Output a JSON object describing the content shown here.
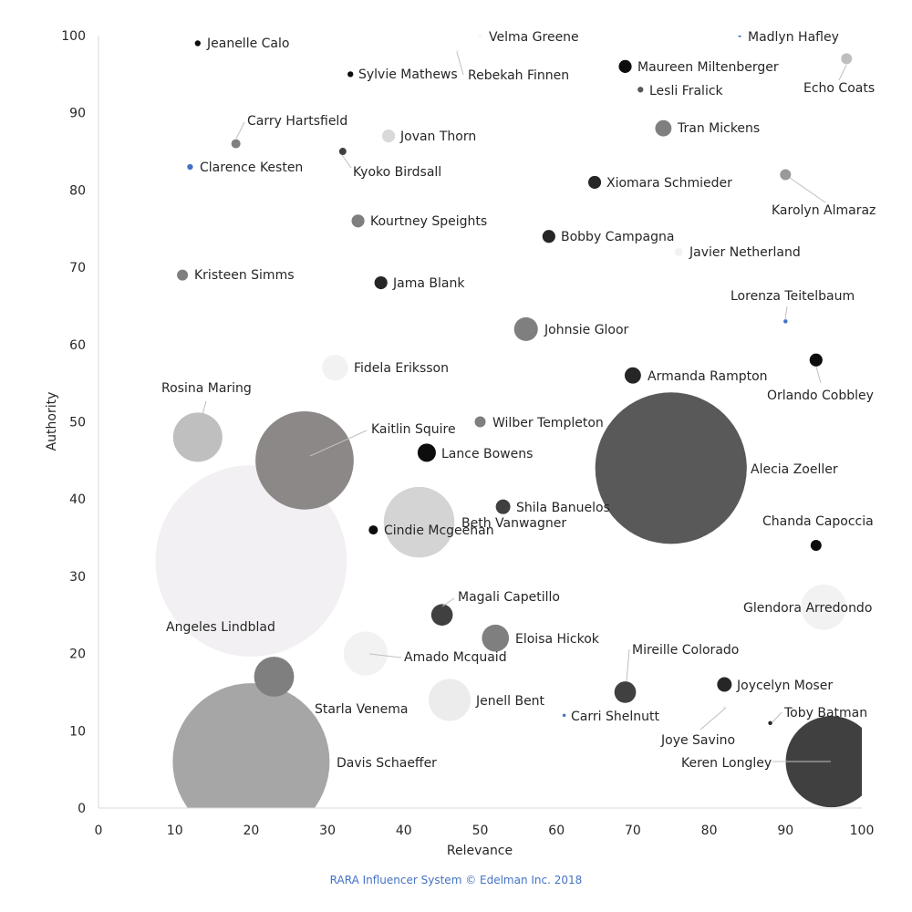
{
  "chart_data": {
    "type": "bubble",
    "xlabel": "Relevance",
    "ylabel": "Authority",
    "xlim": [
      0,
      100
    ],
    "ylim": [
      0,
      100
    ],
    "xticks": [
      0,
      10,
      20,
      30,
      40,
      50,
      60,
      70,
      80,
      90,
      100
    ],
    "yticks": [
      0,
      10,
      20,
      30,
      40,
      50,
      60,
      70,
      80,
      90,
      100
    ],
    "grid": false,
    "points": [
      {
        "name": "Jeanelle Calo",
        "x": 13,
        "y": 99,
        "size": 0.1,
        "color": "#0d0d0d"
      },
      {
        "name": "Velma Greene",
        "x": 50,
        "y": 100,
        "size": 0.05,
        "color": "#f2f2f2"
      },
      {
        "name": "Rebekah Finnen",
        "x": 47,
        "y": 98,
        "size": 0.03,
        "color": "#f2f2f2"
      },
      {
        "name": "Sylvie Mathews",
        "x": 33,
        "y": 95,
        "size": 0.1,
        "color": "#0d0d0d"
      },
      {
        "name": "Madlyn Hafley",
        "x": 84,
        "y": 100,
        "size": 0.03,
        "color": "#4472c4"
      },
      {
        "name": "Maureen Miltenberger",
        "x": 69,
        "y": 96,
        "size": 0.5,
        "color": "#0d0d0d"
      },
      {
        "name": "Lesli Fralick",
        "x": 71,
        "y": 93,
        "size": 0.1,
        "color": "#595959"
      },
      {
        "name": "Echo Coats",
        "x": 98,
        "y": 97,
        "size": 0.36,
        "color": "#bfbfbf"
      },
      {
        "name": "Carry Hartsfield",
        "x": 18,
        "y": 86,
        "size": 0.25,
        "color": "#7f7f7f"
      },
      {
        "name": "Clarence Kesten",
        "x": 12,
        "y": 83,
        "size": 0.1,
        "color": "#4472c4"
      },
      {
        "name": "Kyoko Birdsall",
        "x": 32,
        "y": 85,
        "size": 0.16,
        "color": "#404040"
      },
      {
        "name": "Jovan Thorn",
        "x": 38,
        "y": 87,
        "size": 0.5,
        "color": "#d9d9d9"
      },
      {
        "name": "Tran Mickens",
        "x": 74,
        "y": 88,
        "size": 0.8,
        "color": "#7f7f7f"
      },
      {
        "name": "Xiomara Schmieder",
        "x": 65,
        "y": 81,
        "size": 0.5,
        "color": "#262626"
      },
      {
        "name": "Karolyn Almaraz",
        "x": 90,
        "y": 82,
        "size": 0.36,
        "color": "#9a9a9a"
      },
      {
        "name": "Kourtney Speights",
        "x": 34,
        "y": 76,
        "size": 0.5,
        "color": "#7f7f7f"
      },
      {
        "name": "Bobby Campagna",
        "x": 59,
        "y": 74,
        "size": 0.5,
        "color": "#262626"
      },
      {
        "name": "Javier Netherland",
        "x": 76,
        "y": 72,
        "size": 0.2,
        "color": "#f2f2f2"
      },
      {
        "name": "Kristeen Simms",
        "x": 11,
        "y": 69,
        "size": 0.36,
        "color": "#7f7f7f"
      },
      {
        "name": "Jama Blank",
        "x": 37,
        "y": 68,
        "size": 0.5,
        "color": "#262626"
      },
      {
        "name": "Lorenza Teitelbaum",
        "x": 90,
        "y": 63,
        "size": 0.05,
        "color": "#4472c4"
      },
      {
        "name": "Johnsie Gloor",
        "x": 56,
        "y": 62,
        "size": 1.7,
        "color": "#7f7f7f"
      },
      {
        "name": "Fidela Eriksson",
        "x": 31,
        "y": 57,
        "size": 2,
        "color": "#f2f2f2"
      },
      {
        "name": "Orlando Cobbley",
        "x": 94,
        "y": 58,
        "size": 0.5,
        "color": "#0d0d0d"
      },
      {
        "name": "Armanda Rampton",
        "x": 70,
        "y": 56,
        "size": 0.8,
        "color": "#262626"
      },
      {
        "name": "Rosina Maring",
        "x": 13,
        "y": 48,
        "size": 7.3,
        "color": "#bfbfbf"
      },
      {
        "name": "Kaitlin Squire",
        "x": 27,
        "y": 45,
        "size": 29,
        "color": "#8c8888"
      },
      {
        "name": "Wilber Templeton",
        "x": 50,
        "y": 50,
        "size": 0.36,
        "color": "#7f7f7f"
      },
      {
        "name": "Lance Bowens",
        "x": 43,
        "y": 46,
        "size": 1,
        "color": "#0d0d0d"
      },
      {
        "name": "Alecia Zoeller",
        "x": 75,
        "y": 44,
        "size": 69,
        "color": "#595959"
      },
      {
        "name": "Angeles Lindblad",
        "x": 20,
        "y": 32,
        "size": 110,
        "color": "#f2f0f2"
      },
      {
        "name": "Beth Vanwagner",
        "x": 42,
        "y": 37,
        "size": 15,
        "color": "#d4d4d4"
      },
      {
        "name": "Shila Banuelos",
        "x": 53,
        "y": 39,
        "size": 0.64,
        "color": "#404040"
      },
      {
        "name": "Cindie Mcgeehan",
        "x": 36,
        "y": 36,
        "size": 0.25,
        "color": "#0d0d0d"
      },
      {
        "name": "Chanda Capoccia",
        "x": 94,
        "y": 34,
        "size": 0.36,
        "color": "#0d0d0d"
      },
      {
        "name": "Glendora Arredondo",
        "x": 95,
        "y": 26,
        "size": 6.2,
        "color": "#f2f2f2"
      },
      {
        "name": "Magali Capetillo",
        "x": 45,
        "y": 25,
        "size": 1.4,
        "color": "#404040"
      },
      {
        "name": "Eloisa Hickok",
        "x": 52,
        "y": 22,
        "size": 2.2,
        "color": "#7f7f7f"
      },
      {
        "name": "Amado Mcquaid",
        "x": 35,
        "y": 20,
        "size": 5.8,
        "color": "#f2f2f2"
      },
      {
        "name": "Mireille Colorado",
        "x": 69,
        "y": 15,
        "size": 1.4,
        "color": "#404040"
      },
      {
        "name": "Joycelyn Moser",
        "x": 82,
        "y": 16,
        "size": 0.64,
        "color": "#262626"
      },
      {
        "name": "Starla Venema",
        "x": 23,
        "y": 17,
        "size": 4.8,
        "color": "#7f7f7f"
      },
      {
        "name": "Jenell Bent",
        "x": 46,
        "y": 14,
        "size": 5.3,
        "color": "#ececec"
      },
      {
        "name": "Carri Shelnutt",
        "x": 61,
        "y": 12,
        "size": 0.03,
        "color": "#4472c4"
      },
      {
        "name": "Joye Savino",
        "x": 82,
        "y": 13,
        "size": 0.03,
        "color": "#f2f2f2"
      },
      {
        "name": "Toby Batman",
        "x": 88,
        "y": 11,
        "size": 0.05,
        "color": "#262626"
      },
      {
        "name": "Keren Longley",
        "x": 96,
        "y": 6,
        "size": 25,
        "color": "#404040"
      },
      {
        "name": "Davis Schaeffer",
        "x": 20,
        "y": 6,
        "size": 74,
        "color": "#a6a6a6"
      }
    ]
  },
  "footer": "RARA Influencer System © Edelman Inc. 2018"
}
